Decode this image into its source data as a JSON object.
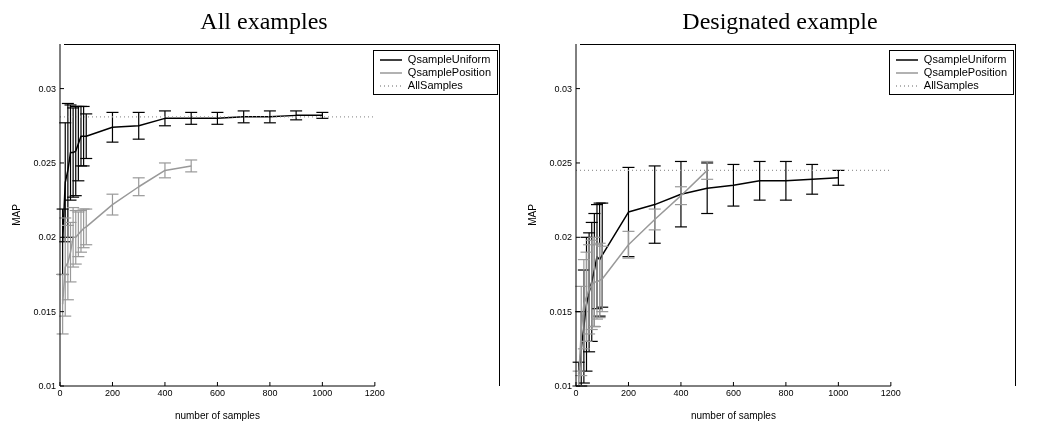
{
  "chart_data": [
    {
      "type": "line",
      "title": "All examples",
      "xlabel": "number of samples",
      "ylabel": "MAP",
      "xlim": [
        0,
        1200
      ],
      "xticks": [
        0,
        200,
        400,
        600,
        800,
        1000,
        1200
      ],
      "ylim": [
        0.01,
        0.033
      ],
      "yticks": [
        0.01,
        0.015,
        0.02,
        0.025,
        0.03
      ],
      "legend": "top right",
      "marker": "none",
      "series": [
        {
          "name": "QsampleUniform",
          "color": "#000000",
          "line_style": "solid",
          "x": [
            10,
            20,
            30,
            40,
            50,
            60,
            70,
            80,
            90,
            100,
            200,
            300,
            400,
            500,
            600,
            700,
            800,
            900,
            1000
          ],
          "values": [
            0.0197,
            0.0237,
            0.0245,
            0.0257,
            0.0257,
            0.0258,
            0.0263,
            0.0268,
            0.0268,
            0.0268,
            0.0274,
            0.0275,
            0.028,
            0.028,
            0.028,
            0.0281,
            0.0281,
            0.0282,
            0.0282
          ],
          "errors": [
            0.0022,
            0.004,
            0.0045,
            0.0032,
            0.003,
            0.003,
            0.0025,
            0.002,
            0.002,
            0.0015,
            0.001,
            0.0009,
            0.0005,
            0.0004,
            0.0004,
            0.0004,
            0.0004,
            0.0003,
            0.0002
          ]
        },
        {
          "name": "QsamplePosition",
          "color": "#999999",
          "line_style": "solid",
          "x": [
            10,
            20,
            30,
            40,
            50,
            60,
            70,
            80,
            90,
            100,
            200,
            300,
            400,
            500
          ],
          "values": [
            0.0155,
            0.018,
            0.0183,
            0.019,
            0.02,
            0.02,
            0.0202,
            0.0204,
            0.0206,
            0.0207,
            0.0222,
            0.0234,
            0.0245,
            0.0248
          ],
          "errors": [
            0.002,
            0.0033,
            0.0025,
            0.002,
            0.002,
            0.0018,
            0.0015,
            0.0014,
            0.0013,
            0.0012,
            0.0007,
            0.0006,
            0.0005,
            0.0004
          ]
        },
        {
          "name": "AllSamples",
          "color": "#999999",
          "line_style": "dotted",
          "x": [
            0,
            1200
          ],
          "values": [
            0.0281,
            0.0281
          ]
        }
      ]
    },
    {
      "type": "line",
      "title": "Designated example",
      "xlabel": "number of samples",
      "ylabel": "MAP",
      "xlim": [
        0,
        1200
      ],
      "xticks": [
        0,
        200,
        400,
        600,
        800,
        1000,
        1200
      ],
      "ylim": [
        0.01,
        0.033
      ],
      "yticks": [
        0.01,
        0.015,
        0.02,
        0.025,
        0.03
      ],
      "legend": "top right",
      "marker": "none",
      "series": [
        {
          "name": "QsampleUniform",
          "color": "#000000",
          "line_style": "solid",
          "x": [
            10,
            20,
            30,
            40,
            50,
            60,
            70,
            80,
            90,
            100,
            200,
            300,
            400,
            500,
            600,
            700,
            800,
            900,
            1000
          ],
          "values": [
            0.0108,
            0.0125,
            0.014,
            0.0155,
            0.0163,
            0.017,
            0.0178,
            0.0187,
            0.0185,
            0.0188,
            0.0217,
            0.0222,
            0.0229,
            0.0233,
            0.0235,
            0.0238,
            0.0238,
            0.0239,
            0.024
          ],
          "errors": [
            0.0008,
            0.0025,
            0.0038,
            0.0045,
            0.004,
            0.004,
            0.0038,
            0.0035,
            0.0038,
            0.0035,
            0.003,
            0.0026,
            0.0022,
            0.0017,
            0.0014,
            0.0013,
            0.0013,
            0.001,
            0.0005
          ]
        },
        {
          "name": "QsamplePosition",
          "color": "#999999",
          "line_style": "solid",
          "x": [
            10,
            20,
            30,
            40,
            50,
            60,
            70,
            80,
            90,
            100,
            200,
            300,
            400,
            500
          ],
          "values": [
            0.0105,
            0.0137,
            0.0155,
            0.016,
            0.0165,
            0.0168,
            0.017,
            0.017,
            0.0171,
            0.0172,
            0.0195,
            0.0212,
            0.0228,
            0.0245
          ],
          "errors": [
            0.0005,
            0.003,
            0.003,
            0.003,
            0.003,
            0.003,
            0.003,
            0.0025,
            0.0025,
            0.0022,
            0.0009,
            0.0007,
            0.0006,
            0.0006
          ]
        },
        {
          "name": "AllSamples",
          "color": "#999999",
          "line_style": "dotted",
          "x": [
            0,
            1200
          ],
          "values": [
            0.0245,
            0.0245
          ]
        }
      ]
    }
  ]
}
